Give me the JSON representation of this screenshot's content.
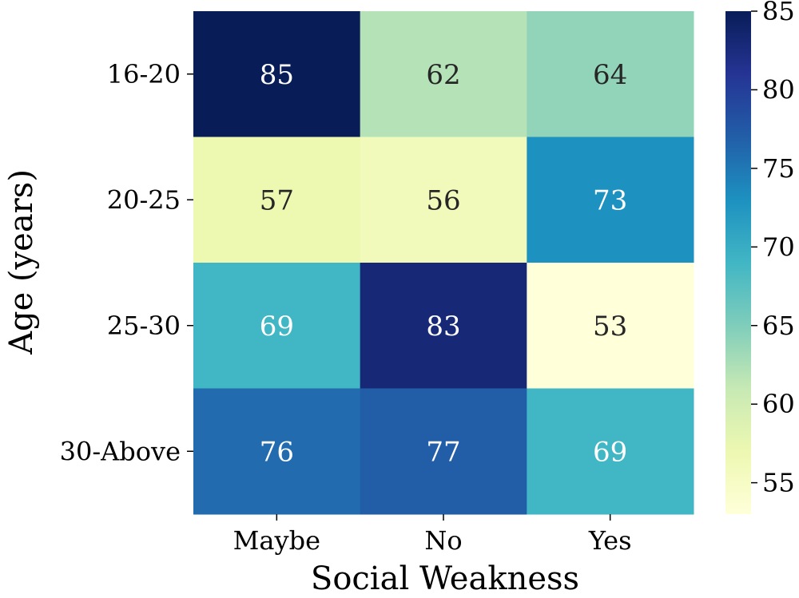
{
  "chart_data": {
    "type": "heatmap",
    "title": "",
    "xlabel": "Social Weakness",
    "ylabel": "Age (years)",
    "x_categories": [
      "Maybe",
      "No",
      "Yes"
    ],
    "y_categories": [
      "16-20",
      "20-25",
      "25-30",
      "30-Above"
    ],
    "values": [
      [
        85,
        62,
        64
      ],
      [
        57,
        56,
        73
      ],
      [
        69,
        83,
        53
      ],
      [
        76,
        77,
        69
      ]
    ],
    "colormap": "YlGnBu",
    "value_range": [
      53,
      85
    ],
    "colorbar_ticks": [
      55,
      60,
      65,
      70,
      75,
      80,
      85
    ],
    "colorbar_placement": "right",
    "grid": false
  }
}
